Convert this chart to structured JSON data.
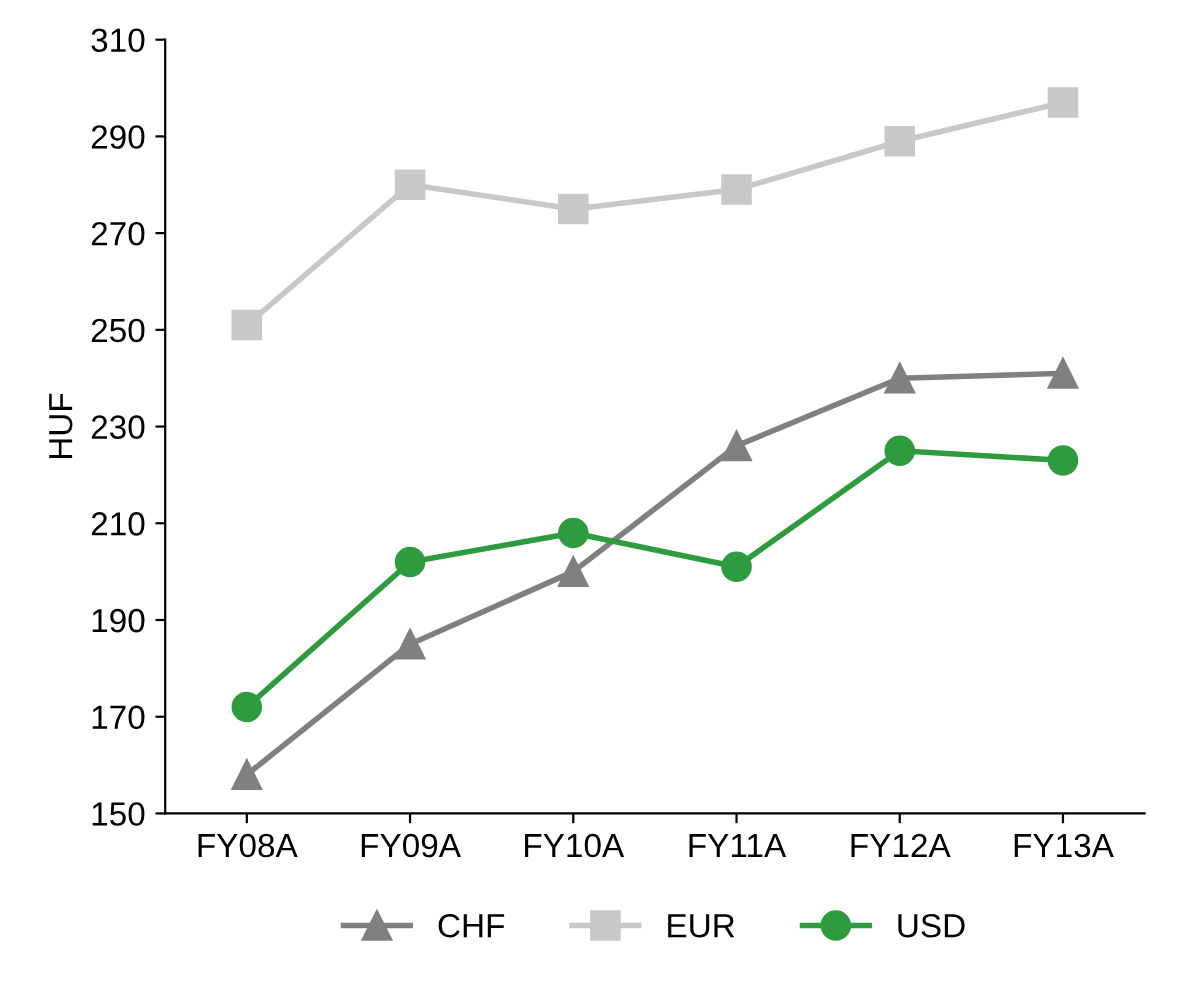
{
  "chart_data": {
    "type": "line",
    "ylabel": "HUF",
    "categories": [
      "FY08A",
      "FY09A",
      "FY10A",
      "FY11A",
      "FY12A",
      "FY13A"
    ],
    "series": [
      {
        "name": "CHF",
        "color": "#808080",
        "marker": "triangle",
        "values": [
          158,
          185,
          200,
          226,
          240,
          241
        ]
      },
      {
        "name": "EUR",
        "color": "#c8c8c8",
        "marker": "square",
        "values": [
          251,
          280,
          275,
          279,
          289,
          297
        ]
      },
      {
        "name": "USD",
        "color": "#2e9b3e",
        "marker": "circle",
        "values": [
          172,
          202,
          208,
          201,
          225,
          223
        ]
      }
    ],
    "ylim": [
      150,
      310
    ],
    "yticks": [
      150,
      170,
      190,
      210,
      230,
      250,
      270,
      290,
      310
    ],
    "grid": false,
    "legend": "bottom"
  }
}
